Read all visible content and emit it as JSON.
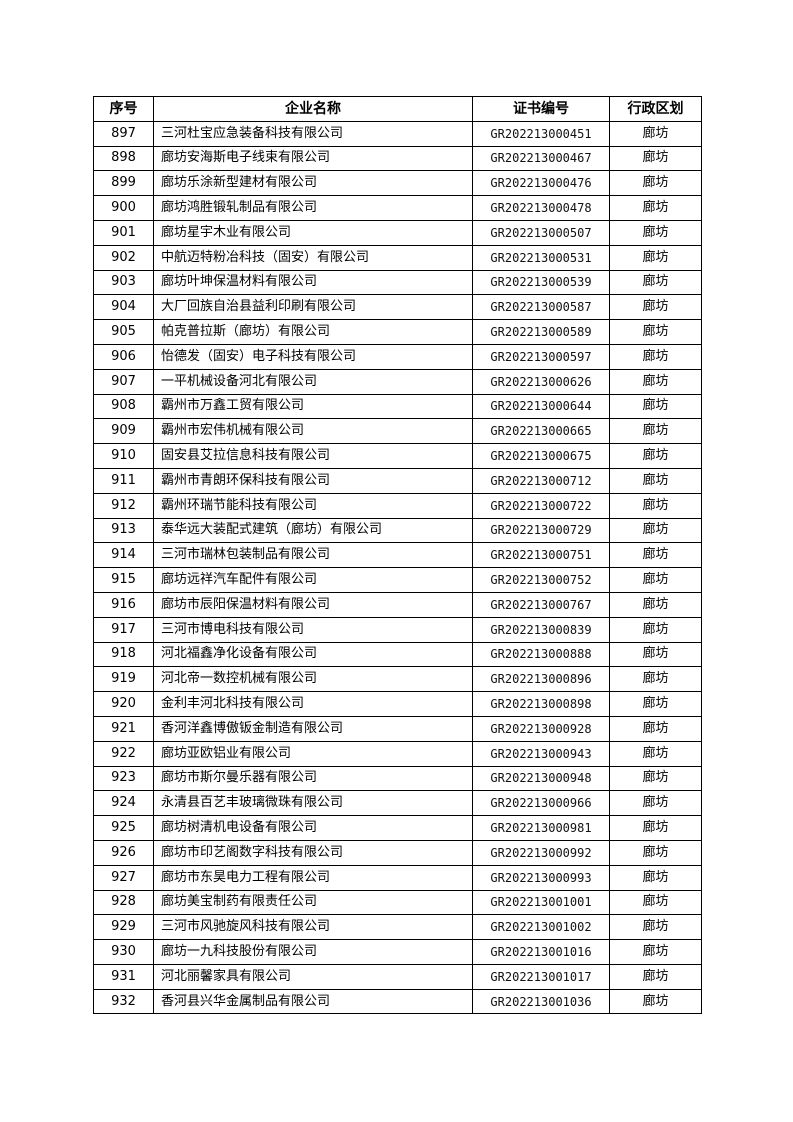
{
  "table": {
    "headers": [
      "序号",
      "企业名称",
      "证书编号",
      "行政区划"
    ],
    "rows": [
      [
        "897",
        "三河杜宝应急装备科技有限公司",
        "GR202213000451",
        "廊坊"
      ],
      [
        "898",
        "廊坊安海斯电子线束有限公司",
        "GR202213000467",
        "廊坊"
      ],
      [
        "899",
        "廊坊乐涂新型建材有限公司",
        "GR202213000476",
        "廊坊"
      ],
      [
        "900",
        "廊坊鸿胜锻轧制品有限公司",
        "GR202213000478",
        "廊坊"
      ],
      [
        "901",
        "廊坊星宇木业有限公司",
        "GR202213000507",
        "廊坊"
      ],
      [
        "902",
        "中航迈特粉冶科技（固安）有限公司",
        "GR202213000531",
        "廊坊"
      ],
      [
        "903",
        "廊坊叶坤保温材料有限公司",
        "GR202213000539",
        "廊坊"
      ],
      [
        "904",
        "大厂回族自治县益利印刷有限公司",
        "GR202213000587",
        "廊坊"
      ],
      [
        "905",
        "帕克普拉斯（廊坊）有限公司",
        "GR202213000589",
        "廊坊"
      ],
      [
        "906",
        "怡德发（固安）电子科技有限公司",
        "GR202213000597",
        "廊坊"
      ],
      [
        "907",
        "一平机械设备河北有限公司",
        "GR202213000626",
        "廊坊"
      ],
      [
        "908",
        "霸州市万鑫工贸有限公司",
        "GR202213000644",
        "廊坊"
      ],
      [
        "909",
        "霸州市宏伟机械有限公司",
        "GR202213000665",
        "廊坊"
      ],
      [
        "910",
        "固安县艾拉信息科技有限公司",
        "GR202213000675",
        "廊坊"
      ],
      [
        "911",
        "霸州市青朗环保科技有限公司",
        "GR202213000712",
        "廊坊"
      ],
      [
        "912",
        "霸州环瑞节能科技有限公司",
        "GR202213000722",
        "廊坊"
      ],
      [
        "913",
        "泰华远大装配式建筑（廊坊）有限公司",
        "GR202213000729",
        "廊坊"
      ],
      [
        "914",
        "三河市瑞林包装制品有限公司",
        "GR202213000751",
        "廊坊"
      ],
      [
        "915",
        "廊坊远祥汽车配件有限公司",
        "GR202213000752",
        "廊坊"
      ],
      [
        "916",
        "廊坊市辰阳保温材料有限公司",
        "GR202213000767",
        "廊坊"
      ],
      [
        "917",
        "三河市博电科技有限公司",
        "GR202213000839",
        "廊坊"
      ],
      [
        "918",
        "河北福鑫净化设备有限公司",
        "GR202213000888",
        "廊坊"
      ],
      [
        "919",
        "河北帝一数控机械有限公司",
        "GR202213000896",
        "廊坊"
      ],
      [
        "920",
        "金利丰河北科技有限公司",
        "GR202213000898",
        "廊坊"
      ],
      [
        "921",
        "香河洋鑫博傲钣金制造有限公司",
        "GR202213000928",
        "廊坊"
      ],
      [
        "922",
        "廊坊亚欧铝业有限公司",
        "GR202213000943",
        "廊坊"
      ],
      [
        "923",
        "廊坊市斯尔曼乐器有限公司",
        "GR202213000948",
        "廊坊"
      ],
      [
        "924",
        "永清县百艺丰玻璃微珠有限公司",
        "GR202213000966",
        "廊坊"
      ],
      [
        "925",
        "廊坊树清机电设备有限公司",
        "GR202213000981",
        "廊坊"
      ],
      [
        "926",
        "廊坊市印艺阁数字科技有限公司",
        "GR202213000992",
        "廊坊"
      ],
      [
        "927",
        "廊坊市东昊电力工程有限公司",
        "GR202213000993",
        "廊坊"
      ],
      [
        "928",
        "廊坊美宝制药有限责任公司",
        "GR202213001001",
        "廊坊"
      ],
      [
        "929",
        "三河市风驰旋风科技有限公司",
        "GR202213001002",
        "廊坊"
      ],
      [
        "930",
        "廊坊一九科技股份有限公司",
        "GR202213001016",
        "廊坊"
      ],
      [
        "931",
        "河北丽馨家具有限公司",
        "GR202213001017",
        "廊坊"
      ],
      [
        "932",
        "香河县兴华金属制品有限公司",
        "GR202213001036",
        "廊坊"
      ]
    ]
  }
}
